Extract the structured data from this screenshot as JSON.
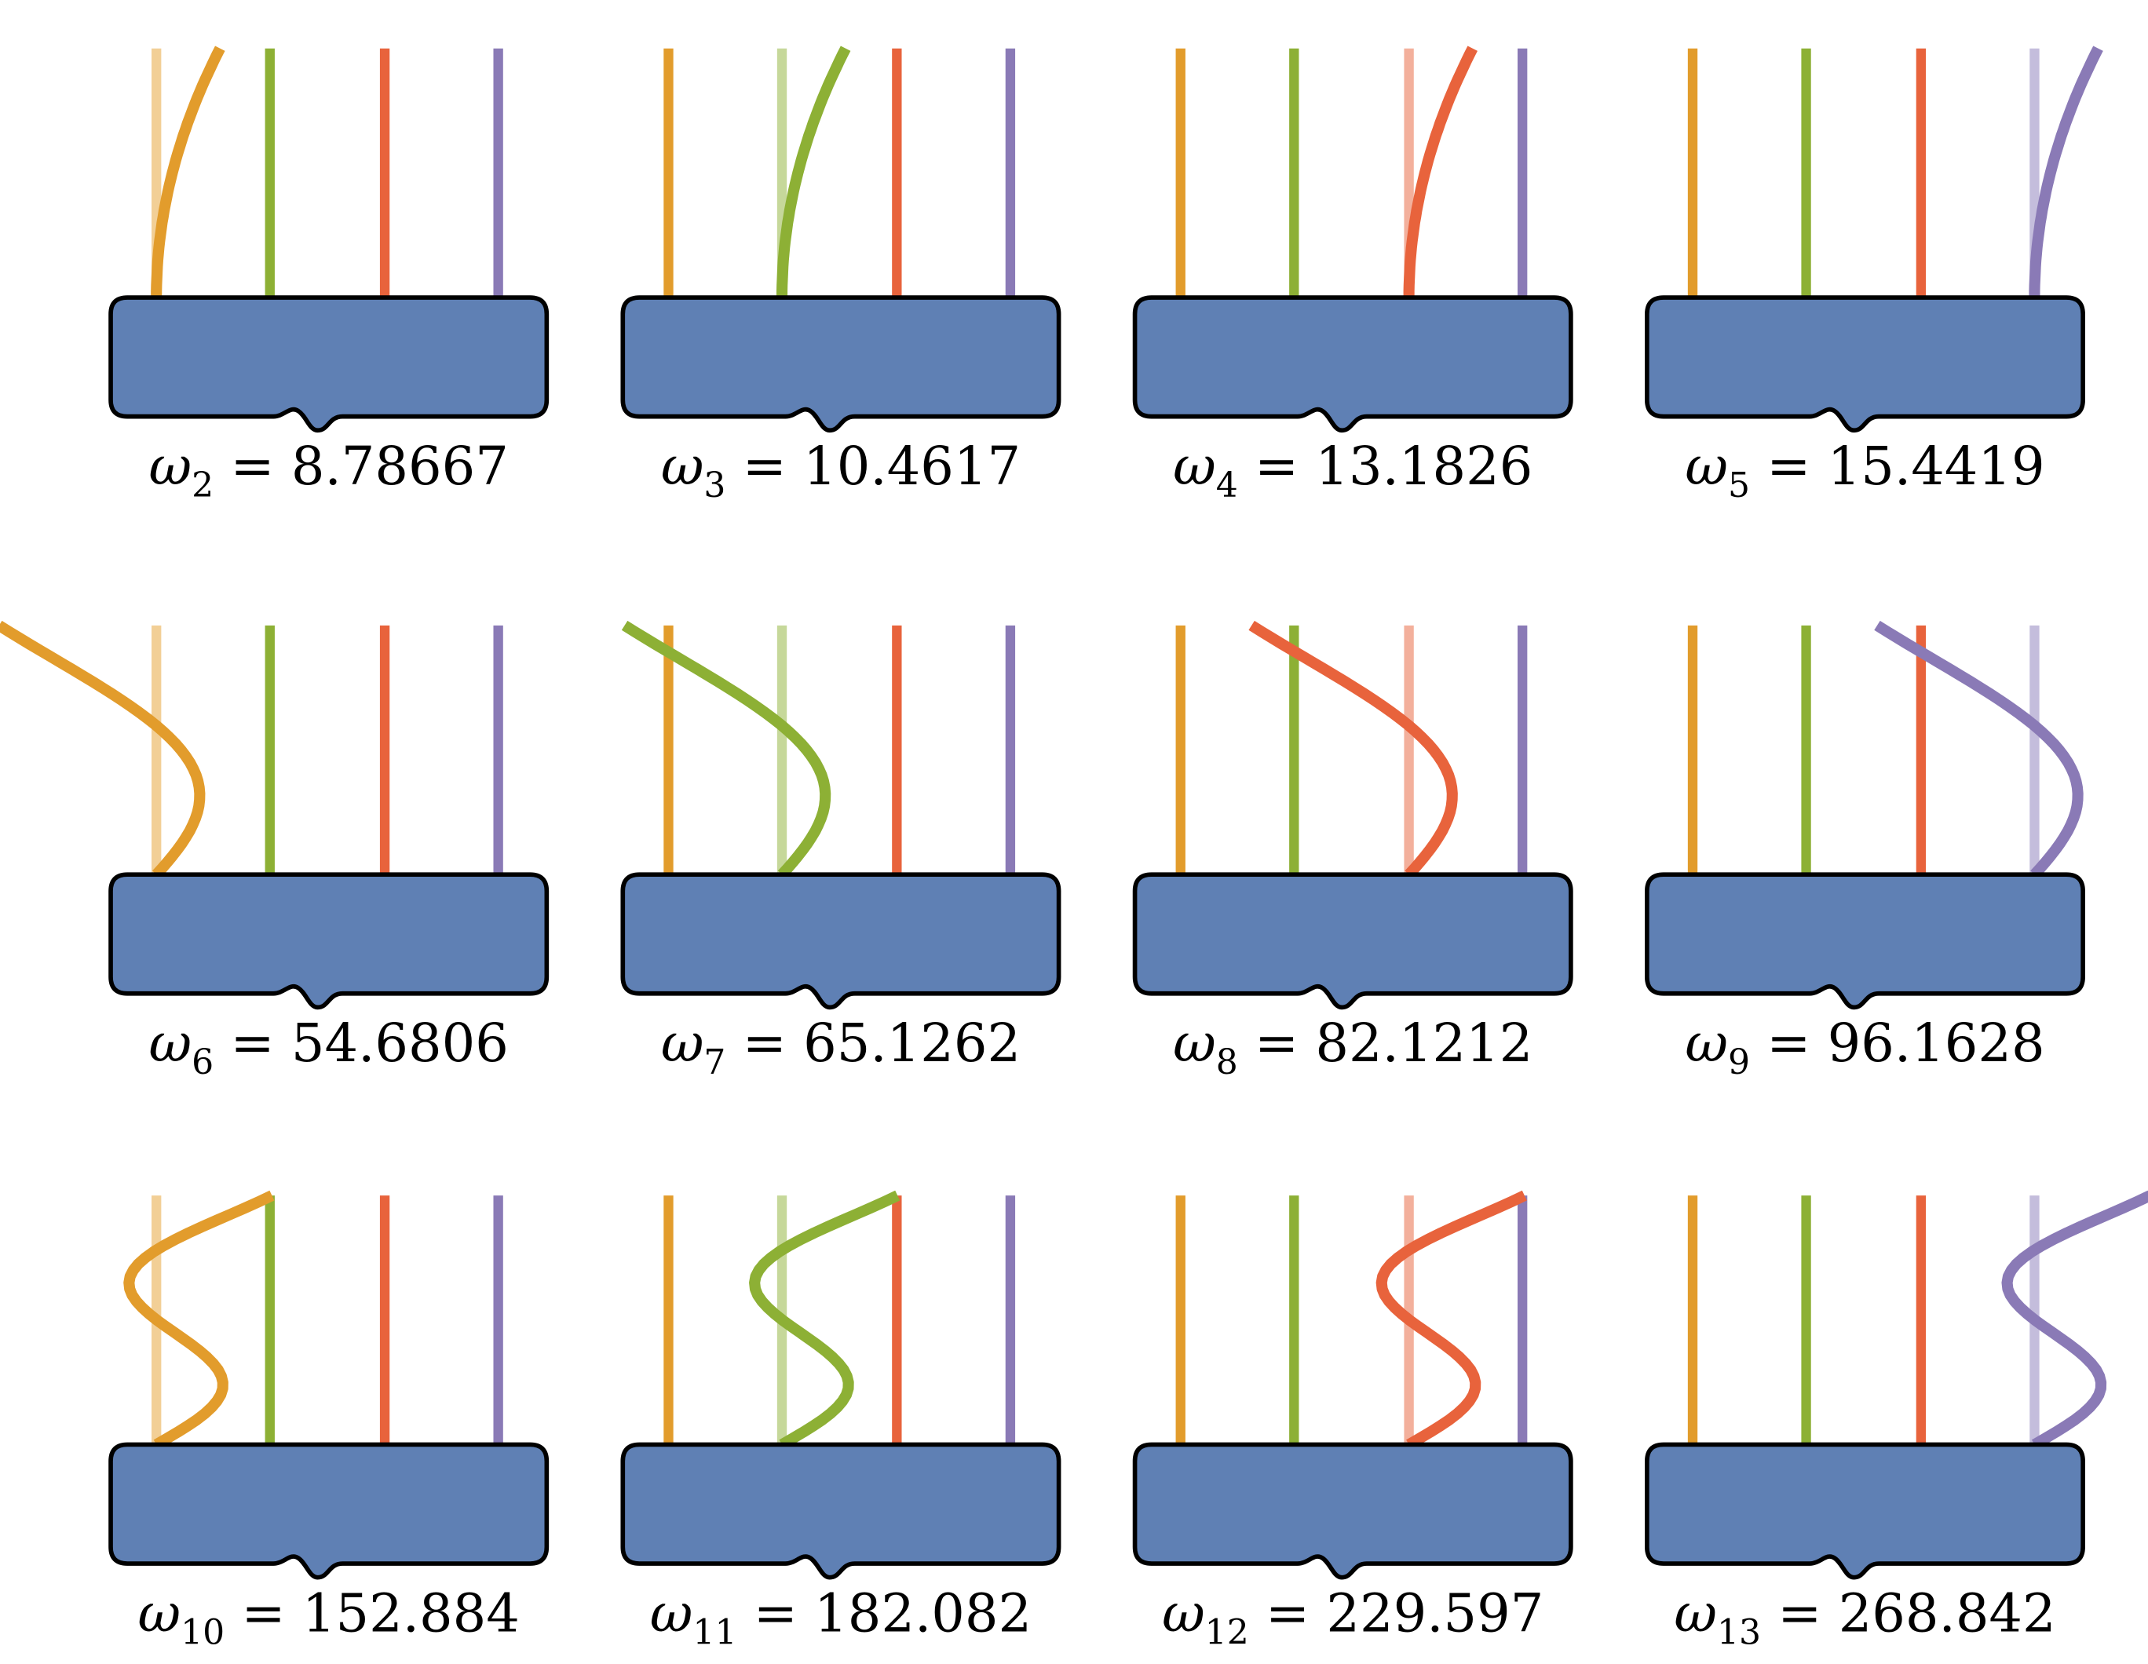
{
  "colors": {
    "base": "#5f80b4",
    "outline": "#000000",
    "reeds": [
      "#e29c2c",
      "#8db035",
      "#e8633c",
      "#8a7ab6"
    ],
    "ghosts": [
      "#f2cf96",
      "#c6d89a",
      "#f3b09c",
      "#c4bddc"
    ]
  },
  "symbol": "ω",
  "modes": [
    {
      "index": "2",
      "value": "8.78667",
      "reed": 0,
      "shape": 1
    },
    {
      "index": "3",
      "value": "10.4617",
      "reed": 1,
      "shape": 1
    },
    {
      "index": "4",
      "value": "13.1826",
      "reed": 2,
      "shape": 1
    },
    {
      "index": "5",
      "value": "15.4419",
      "reed": 3,
      "shape": 1
    },
    {
      "index": "6",
      "value": "54.6806",
      "reed": 0,
      "shape": 2
    },
    {
      "index": "7",
      "value": "65.1262",
      "reed": 1,
      "shape": 2
    },
    {
      "index": "8",
      "value": "82.1212",
      "reed": 2,
      "shape": 2
    },
    {
      "index": "9",
      "value": "96.1628",
      "reed": 3,
      "shape": 2
    },
    {
      "index": "10",
      "value": "152.884",
      "reed": 0,
      "shape": 3
    },
    {
      "index": "11",
      "value": "182.082",
      "reed": 1,
      "shape": 3
    },
    {
      "index": "12",
      "value": "229.597",
      "reed": 2,
      "shape": 3
    },
    {
      "index": "13",
      "value": "268.842",
      "reed": 3,
      "shape": 3
    }
  ]
}
